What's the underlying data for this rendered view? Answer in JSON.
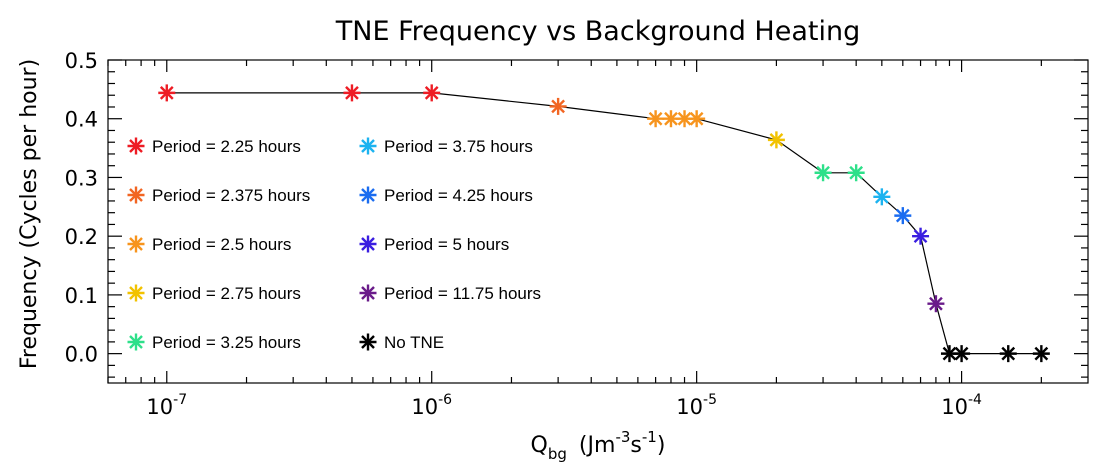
{
  "chart_data": {
    "type": "scatter",
    "title": "TNE Frequency vs Background Heating",
    "ylabel": "Frequency (Cycles per hour)",
    "xlabel": {
      "main": "Q",
      "sub": "bg",
      "units_pre": "(Jm",
      "sup1": "-3",
      "units_mid": "s",
      "sup2": "-1",
      "units_post": ")"
    },
    "x_scale": "log",
    "xlim": [
      6e-08,
      0.0003
    ],
    "ylim": [
      -0.05,
      0.5
    ],
    "x_ticks": [
      {
        "value": 1e-07,
        "base": "10",
        "exp": "-7"
      },
      {
        "value": 1e-06,
        "base": "10",
        "exp": "-6"
      },
      {
        "value": 1e-05,
        "base": "10",
        "exp": "-5"
      },
      {
        "value": 0.0001,
        "base": "10",
        "exp": "-4"
      }
    ],
    "y_ticks": [
      {
        "value": 0.0,
        "label": "0.0"
      },
      {
        "value": 0.1,
        "label": "0.1"
      },
      {
        "value": 0.2,
        "label": "0.2"
      },
      {
        "value": 0.3,
        "label": "0.3"
      },
      {
        "value": 0.4,
        "label": "0.4"
      },
      {
        "value": 0.5,
        "label": "0.5"
      }
    ],
    "grid": false,
    "legend_placement": "left, two columns",
    "series": [
      {
        "name": "Period = 2.25 hours",
        "color": "#ee1c24",
        "points": [
          [
            1e-07,
            0.444
          ],
          [
            5e-07,
            0.444
          ],
          [
            1e-06,
            0.444
          ]
        ]
      },
      {
        "name": "Period = 2.375 hours",
        "color": "#f26522",
        "points": [
          [
            3e-06,
            0.421
          ]
        ]
      },
      {
        "name": "Period = 2.5 hours",
        "color": "#f7941d",
        "points": [
          [
            7e-06,
            0.4
          ],
          [
            8e-06,
            0.4
          ],
          [
            9e-06,
            0.4
          ],
          [
            1e-05,
            0.4
          ]
        ]
      },
      {
        "name": "Period = 2.75 hours",
        "color": "#f2c200",
        "points": [
          [
            2e-05,
            0.364
          ]
        ]
      },
      {
        "name": "Period = 3.25 hours",
        "color": "#2ee08a",
        "points": [
          [
            3e-05,
            0.308
          ],
          [
            4e-05,
            0.308
          ]
        ]
      },
      {
        "name": "Period = 3.75 hours",
        "color": "#1cb3f0",
        "points": [
          [
            5e-05,
            0.267
          ]
        ]
      },
      {
        "name": "Period = 4.25 hours",
        "color": "#1a6cf0",
        "points": [
          [
            6e-05,
            0.235
          ]
        ]
      },
      {
        "name": "Period = 5 hours",
        "color": "#3a1ee0",
        "points": [
          [
            7e-05,
            0.2
          ]
        ]
      },
      {
        "name": "Period = 11.75 hours",
        "color": "#6a1b8a",
        "points": [
          [
            8e-05,
            0.085
          ]
        ]
      },
      {
        "name": "No TNE",
        "color": "#000000",
        "points": [
          [
            9e-05,
            0.0
          ],
          [
            0.0001,
            0.0
          ],
          [
            0.00015,
            0.0
          ],
          [
            0.0002,
            0.0
          ]
        ]
      }
    ]
  }
}
